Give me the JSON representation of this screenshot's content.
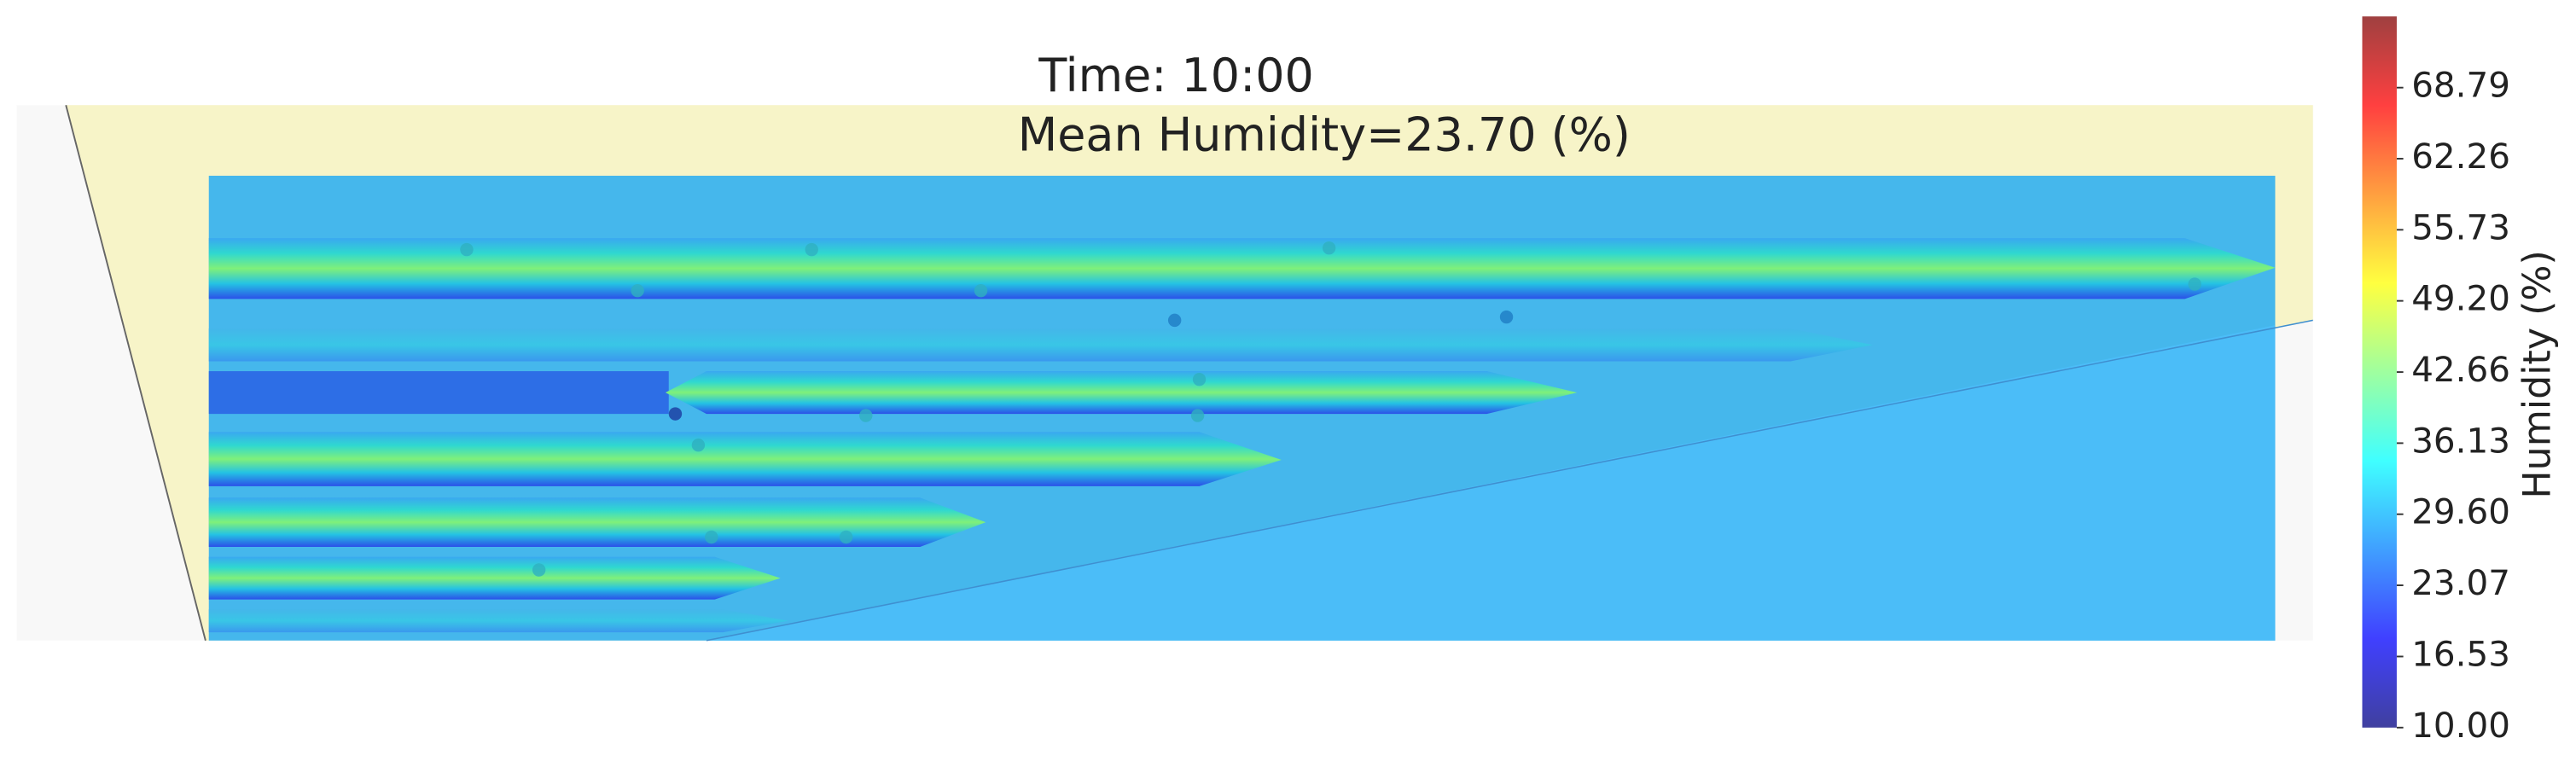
{
  "chart_data": {
    "type": "heatmap",
    "title": "Time: 10:00",
    "subtitle": "Mean Humidity=23.70 (%)",
    "colorbar": {
      "label": "Humidity (%)",
      "colormap": "jet",
      "clim": [
        10,
        75.33
      ],
      "ticks": [
        {
          "value": 10,
          "label": "10.00"
        },
        16.53,
        23.07,
        {
          "value": 29.6,
          "label": "29.60"
        },
        36.13,
        42.66,
        {
          "value": 49.2,
          "label": "49.20"
        },
        55.73,
        62.26,
        68.79
      ]
    }
  }
}
